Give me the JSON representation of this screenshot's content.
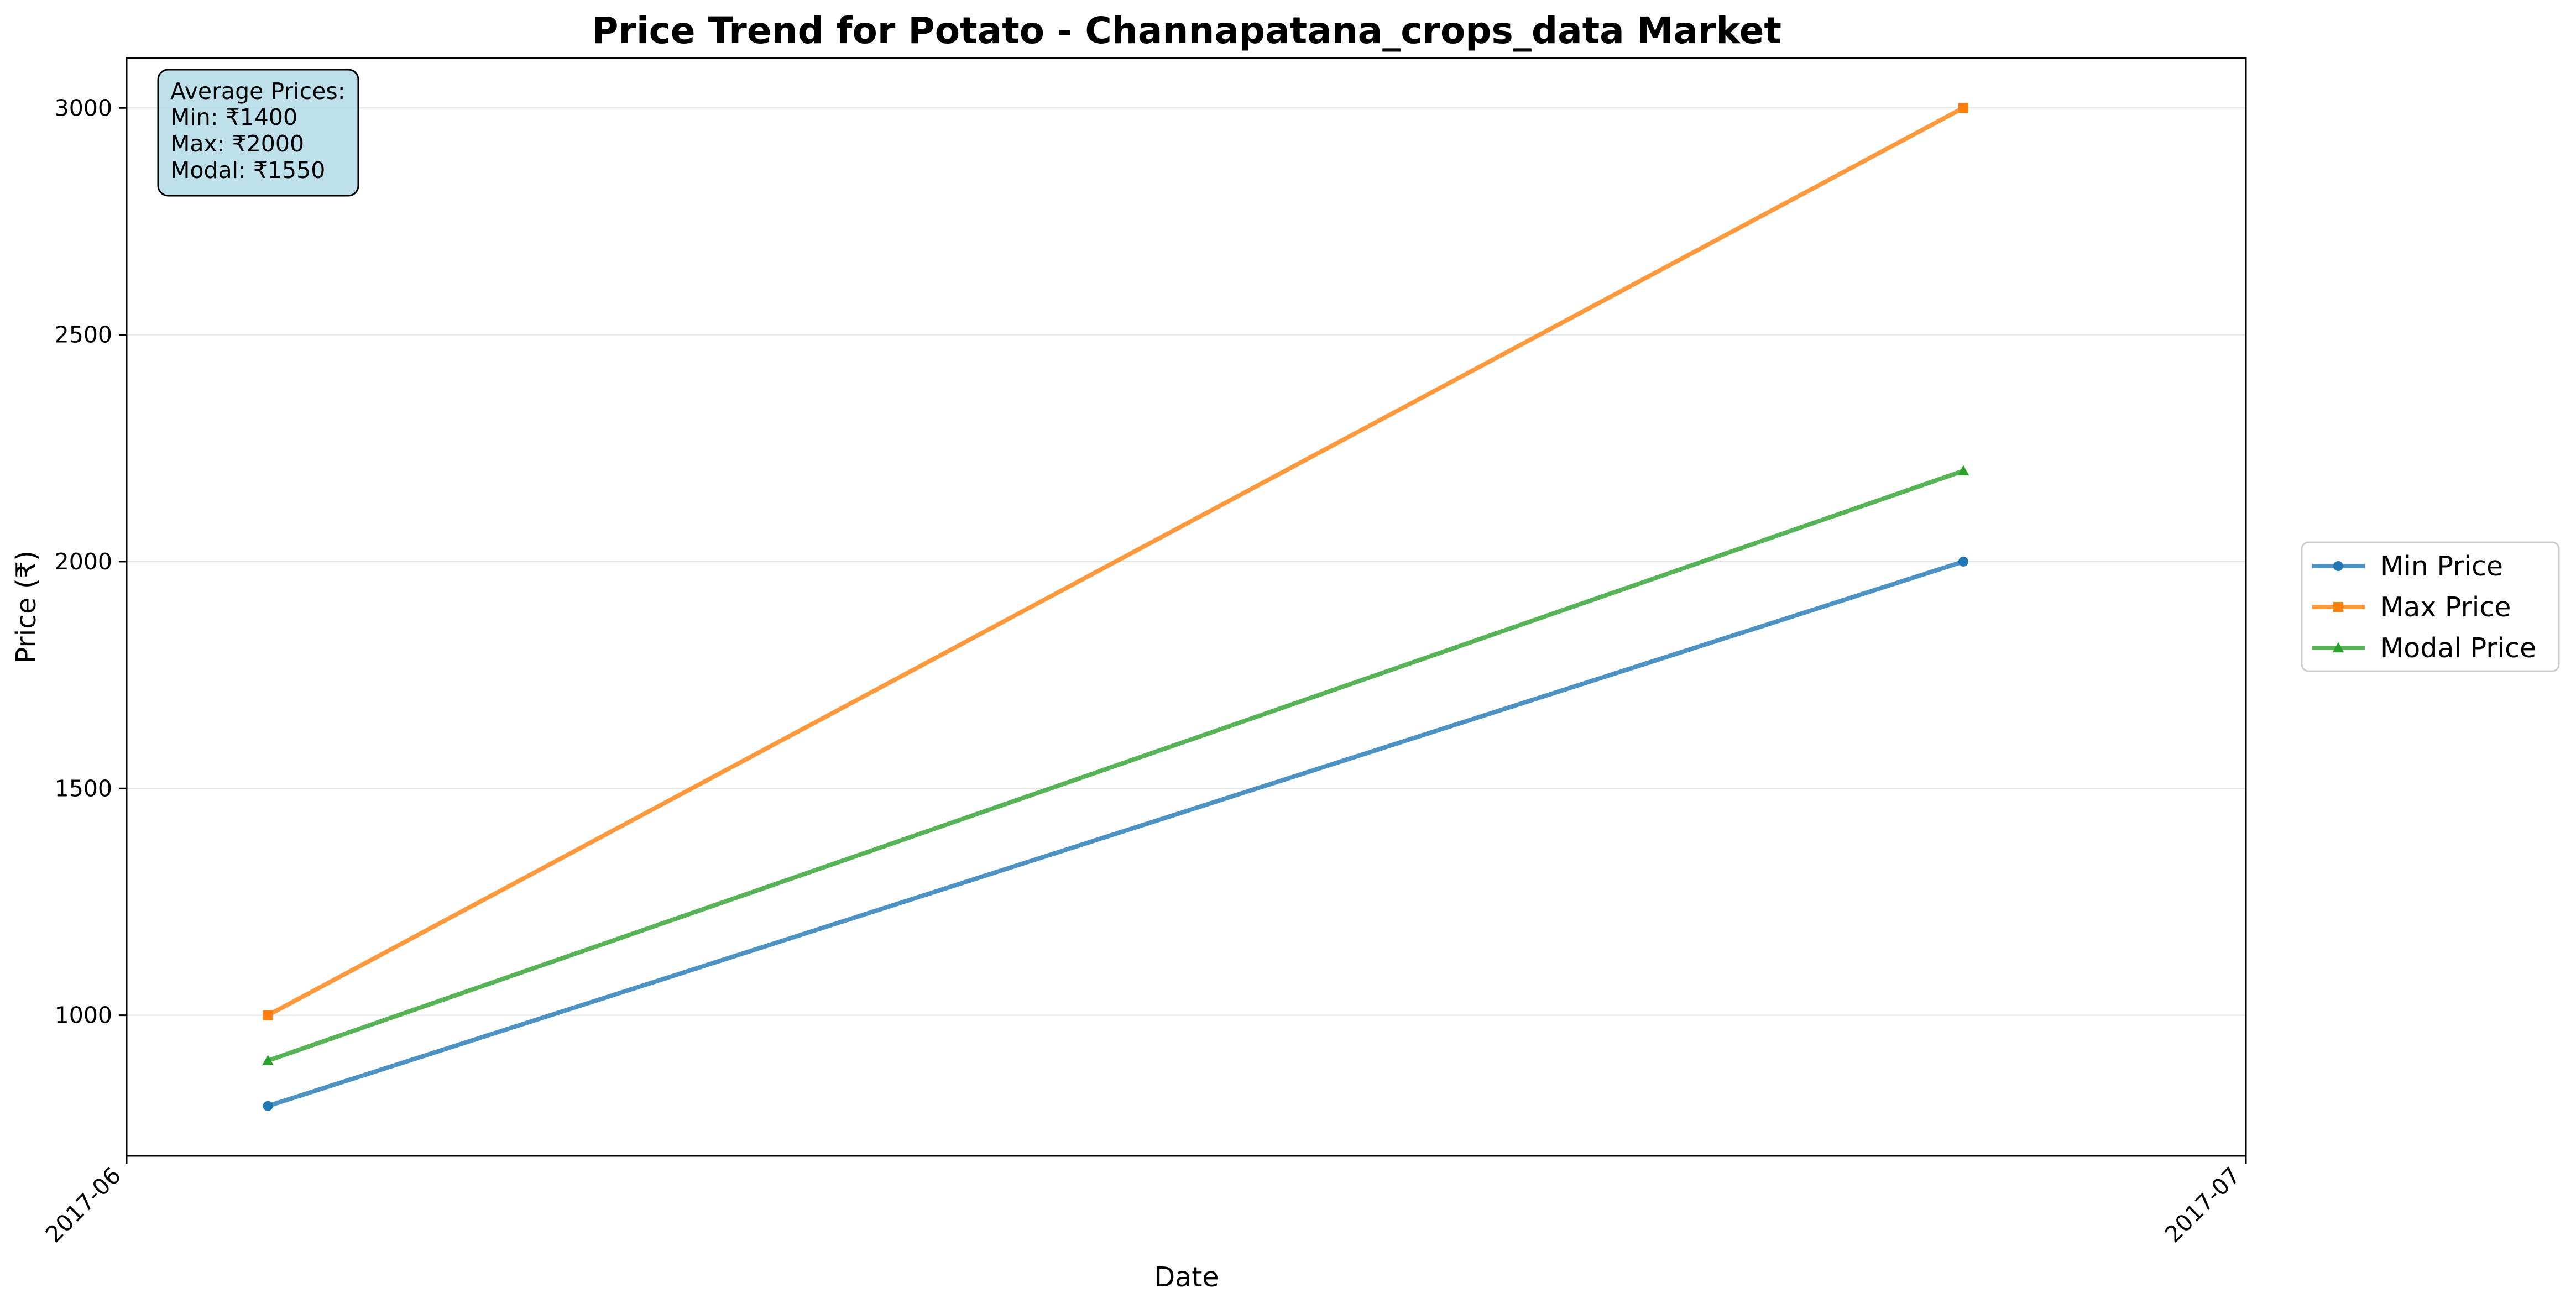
{
  "chart_data": {
    "type": "line",
    "title": "Price Trend for Potato - Channapatana_crops_data Market",
    "xlabel": "Date",
    "ylabel": "Price (₹)",
    "x": [
      "2017-06-03",
      "2017-06-27"
    ],
    "x_ticks": [
      "2017-06",
      "2017-07"
    ],
    "xlim": [
      "2017-06-01",
      "2017-07-01"
    ],
    "y_ticks": [
      1000,
      1500,
      2000,
      2500,
      3000
    ],
    "ylim": [
      690,
      3110
    ],
    "grid": "horizontal",
    "legend_position": "outside-right",
    "series": [
      {
        "name": "Min Price",
        "values": [
          800,
          2000
        ],
        "color": "#1f77b4",
        "marker": "circle"
      },
      {
        "name": "Max Price",
        "values": [
          1000,
          3000
        ],
        "color": "#ff7f0e",
        "marker": "square"
      },
      {
        "name": "Modal Price",
        "values": [
          900,
          2200
        ],
        "color": "#2ca02c",
        "marker": "triangle"
      }
    ],
    "annotation": {
      "lines": [
        "Average Prices:",
        "Min: ₹1400",
        "Max: ₹2000",
        "Modal: ₹1550"
      ],
      "background": "#add8e6"
    }
  }
}
